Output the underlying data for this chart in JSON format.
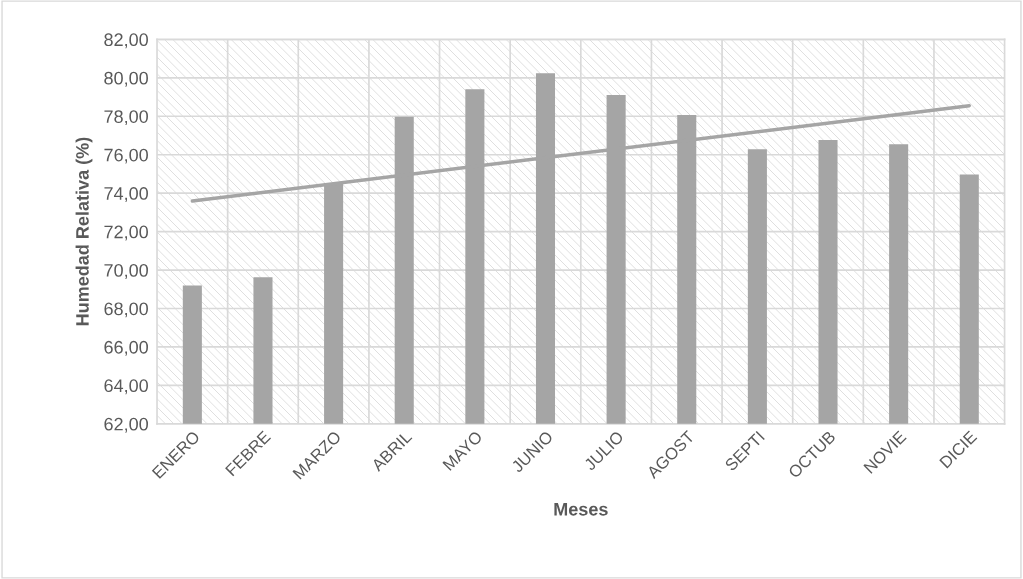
{
  "chart_data": {
    "type": "bar",
    "xlabel": "Meses",
    "ylabel": "Humedad Relativa (%)",
    "categories": [
      "ENERO",
      "FEBRE",
      "MARZO",
      "ABRIL",
      "MAYO",
      "JUNIO",
      "JULIO",
      "AGOST",
      "SEPTI",
      "OCTUB",
      "NOVIE",
      "DICIE"
    ],
    "series": [
      {
        "color": "#a5a5a5",
        "values": [
          69.19,
          69.62,
          74.53,
          77.98,
          79.41,
          80.24,
          79.1,
          78.07,
          76.29,
          76.76,
          76.55,
          74.97
        ]
      },
      {
        "type": "line",
        "color": "#a5a5a5",
        "x": [
          "ENERO",
          "DICIE"
        ],
        "values": [
          73.59,
          78.55
        ]
      }
    ],
    "ylim": [
      62,
      82
    ],
    "yticks": [
      {
        "value": 62,
        "label": "62,00"
      },
      {
        "value": 64,
        "label": "64,00"
      },
      {
        "value": 66,
        "label": "66,00"
      },
      {
        "value": 68,
        "label": "68,00"
      },
      {
        "value": 70,
        "label": "70,00"
      },
      {
        "value": 72,
        "label": "72,00"
      },
      {
        "value": 74,
        "label": "74,00"
      },
      {
        "value": 76,
        "label": "76,00"
      },
      {
        "value": 78,
        "label": "78,00"
      },
      {
        "value": 80,
        "label": "80,00"
      },
      {
        "value": 82,
        "label": "82,00"
      }
    ],
    "grid": true,
    "legend": false
  }
}
